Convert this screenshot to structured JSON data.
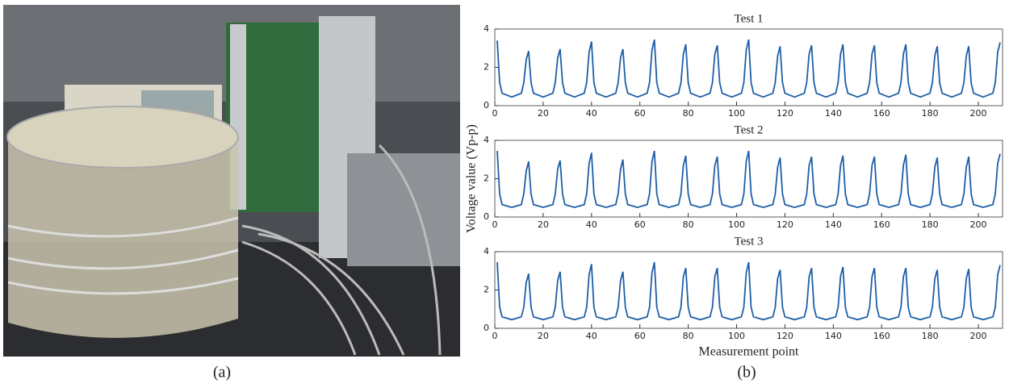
{
  "panel_labels": [
    "(a)",
    "(b)"
  ],
  "chart_data": [
    {
      "type": "line",
      "title": "Test 1",
      "color": "#1f5fa8",
      "xlim": [
        0,
        210
      ],
      "ylim": [
        0,
        4
      ],
      "xticks": [
        0,
        20,
        40,
        60,
        80,
        100,
        120,
        140,
        160,
        180,
        200
      ],
      "yticks": [
        0,
        2,
        4
      ],
      "x": [
        1,
        2,
        3,
        7,
        11,
        12,
        13,
        14,
        15,
        16,
        20,
        24,
        25,
        26,
        27,
        28,
        29,
        33,
        37,
        38,
        39,
        40,
        41,
        42,
        46,
        50,
        51,
        52,
        53,
        54,
        55,
        59,
        63,
        64,
        65,
        66,
        67,
        68,
        72,
        76,
        77,
        78,
        79,
        80,
        81,
        85,
        89,
        90,
        91,
        92,
        93,
        94,
        98,
        102,
        103,
        104,
        105,
        106,
        107,
        111,
        115,
        116,
        117,
        118,
        119,
        120,
        124,
        128,
        129,
        130,
        131,
        132,
        133,
        137,
        141,
        142,
        143,
        144,
        145,
        146,
        150,
        154,
        155,
        156,
        157,
        158,
        159,
        163,
        167,
        168,
        169,
        170,
        171,
        172,
        176,
        180,
        181,
        182,
        183,
        184,
        185,
        189,
        193,
        194,
        195,
        196,
        197,
        198,
        202,
        206,
        207,
        208,
        209
      ],
      "values": [
        3.4,
        1.2,
        0.65,
        0.45,
        0.65,
        1.2,
        2.4,
        2.85,
        1.2,
        0.65,
        0.45,
        0.65,
        1.2,
        2.5,
        2.95,
        1.2,
        0.65,
        0.45,
        0.65,
        1.2,
        2.8,
        3.35,
        1.2,
        0.65,
        0.45,
        0.65,
        1.2,
        2.5,
        2.95,
        1.2,
        0.65,
        0.45,
        0.65,
        1.2,
        2.9,
        3.45,
        1.2,
        0.65,
        0.45,
        0.65,
        1.2,
        2.7,
        3.2,
        1.2,
        0.65,
        0.45,
        0.65,
        1.2,
        2.7,
        3.15,
        1.2,
        0.65,
        0.45,
        0.65,
        1.2,
        2.9,
        3.45,
        1.2,
        0.65,
        0.45,
        0.65,
        1.2,
        2.6,
        3.1,
        1.2,
        0.65,
        0.45,
        0.65,
        1.2,
        2.7,
        3.15,
        1.2,
        0.65,
        0.45,
        0.65,
        1.2,
        2.7,
        3.2,
        1.2,
        0.65,
        0.45,
        0.65,
        1.2,
        2.7,
        3.15,
        1.2,
        0.65,
        0.45,
        0.65,
        1.2,
        2.7,
        3.2,
        1.2,
        0.65,
        0.45,
        0.65,
        1.2,
        2.6,
        3.1,
        1.2,
        0.65,
        0.45,
        0.65,
        1.2,
        2.6,
        3.1,
        1.2,
        0.65,
        0.45,
        0.65,
        1.2,
        2.8,
        3.3
      ]
    },
    {
      "type": "line",
      "title": "Test 2",
      "y_label": "Voltage value (Vp-p)",
      "color": "#1f5fa8",
      "xlim": [
        0,
        210
      ],
      "ylim": [
        0,
        4
      ],
      "xticks": [
        0,
        20,
        40,
        60,
        80,
        100,
        120,
        140,
        160,
        180,
        200
      ],
      "yticks": [
        0,
        2,
        4
      ],
      "x": [
        1,
        2,
        3,
        7,
        11,
        12,
        13,
        14,
        15,
        16,
        20,
        24,
        25,
        26,
        27,
        28,
        29,
        33,
        37,
        38,
        39,
        40,
        41,
        42,
        46,
        50,
        51,
        52,
        53,
        54,
        55,
        59,
        63,
        64,
        65,
        66,
        67,
        68,
        72,
        76,
        77,
        78,
        79,
        80,
        81,
        85,
        89,
        90,
        91,
        92,
        93,
        94,
        98,
        102,
        103,
        104,
        105,
        106,
        107,
        111,
        115,
        116,
        117,
        118,
        119,
        120,
        124,
        128,
        129,
        130,
        131,
        132,
        133,
        137,
        141,
        142,
        143,
        144,
        145,
        146,
        150,
        154,
        155,
        156,
        157,
        158,
        159,
        163,
        167,
        168,
        169,
        170,
        171,
        172,
        176,
        180,
        181,
        182,
        183,
        184,
        185,
        189,
        193,
        194,
        195,
        196,
        197,
        198,
        202,
        206,
        207,
        208,
        209
      ],
      "values": [
        3.45,
        1.2,
        0.65,
        0.5,
        0.65,
        1.2,
        2.4,
        2.9,
        1.2,
        0.65,
        0.5,
        0.65,
        1.2,
        2.5,
        2.95,
        1.2,
        0.65,
        0.5,
        0.65,
        1.2,
        2.8,
        3.35,
        1.2,
        0.65,
        0.5,
        0.65,
        1.2,
        2.5,
        3.0,
        1.2,
        0.65,
        0.5,
        0.65,
        1.2,
        2.9,
        3.45,
        1.2,
        0.65,
        0.5,
        0.65,
        1.2,
        2.7,
        3.2,
        1.2,
        0.65,
        0.5,
        0.65,
        1.2,
        2.7,
        3.15,
        1.2,
        0.65,
        0.5,
        0.65,
        1.2,
        2.9,
        3.45,
        1.2,
        0.65,
        0.5,
        0.65,
        1.2,
        2.6,
        3.1,
        1.2,
        0.65,
        0.5,
        0.65,
        1.2,
        2.7,
        3.15,
        1.2,
        0.65,
        0.5,
        0.65,
        1.2,
        2.7,
        3.2,
        1.2,
        0.65,
        0.5,
        0.65,
        1.2,
        2.7,
        3.15,
        1.2,
        0.65,
        0.5,
        0.65,
        1.2,
        2.7,
        3.25,
        1.2,
        0.65,
        0.5,
        0.65,
        1.2,
        2.6,
        3.1,
        1.2,
        0.65,
        0.5,
        0.65,
        1.2,
        2.6,
        3.15,
        1.2,
        0.65,
        0.5,
        0.65,
        1.2,
        2.8,
        3.3
      ]
    },
    {
      "type": "line",
      "title": "Test 3",
      "x_label": "Measurement point",
      "color": "#1f5fa8",
      "xlim": [
        0,
        210
      ],
      "ylim": [
        0,
        4
      ],
      "xticks": [
        0,
        20,
        40,
        60,
        80,
        100,
        120,
        140,
        160,
        180,
        200
      ],
      "yticks": [
        0,
        2,
        4
      ],
      "x": [
        1,
        2,
        3,
        7,
        11,
        12,
        13,
        14,
        15,
        16,
        20,
        24,
        25,
        26,
        27,
        28,
        29,
        33,
        37,
        38,
        39,
        40,
        41,
        42,
        46,
        50,
        51,
        52,
        53,
        54,
        55,
        59,
        63,
        64,
        65,
        66,
        67,
        68,
        72,
        76,
        77,
        78,
        79,
        80,
        81,
        85,
        89,
        90,
        91,
        92,
        93,
        94,
        98,
        102,
        103,
        104,
        105,
        106,
        107,
        111,
        115,
        116,
        117,
        118,
        119,
        120,
        124,
        128,
        129,
        130,
        131,
        132,
        133,
        137,
        141,
        142,
        143,
        144,
        145,
        146,
        150,
        154,
        155,
        156,
        157,
        158,
        159,
        163,
        167,
        168,
        169,
        170,
        171,
        172,
        176,
        180,
        181,
        182,
        183,
        184,
        185,
        189,
        193,
        194,
        195,
        196,
        197,
        198,
        202,
        206,
        207,
        208,
        209
      ],
      "values": [
        3.45,
        1.1,
        0.6,
        0.45,
        0.6,
        1.1,
        2.4,
        2.85,
        1.1,
        0.6,
        0.45,
        0.6,
        1.1,
        2.5,
        2.95,
        1.1,
        0.6,
        0.45,
        0.6,
        1.1,
        2.8,
        3.35,
        1.1,
        0.6,
        0.45,
        0.6,
        1.1,
        2.5,
        2.95,
        1.1,
        0.6,
        0.45,
        0.6,
        1.1,
        2.9,
        3.45,
        1.1,
        0.6,
        0.45,
        0.6,
        1.1,
        2.7,
        3.15,
        1.1,
        0.6,
        0.45,
        0.6,
        1.1,
        2.7,
        3.15,
        1.1,
        0.6,
        0.45,
        0.6,
        1.1,
        2.9,
        3.45,
        1.1,
        0.6,
        0.45,
        0.6,
        1.1,
        2.6,
        3.05,
        1.1,
        0.6,
        0.45,
        0.6,
        1.1,
        2.7,
        3.15,
        1.1,
        0.6,
        0.45,
        0.6,
        1.1,
        2.7,
        3.2,
        1.1,
        0.6,
        0.45,
        0.6,
        1.1,
        2.7,
        3.15,
        1.1,
        0.6,
        0.45,
        0.6,
        1.1,
        2.7,
        3.15,
        1.1,
        0.6,
        0.45,
        0.6,
        1.1,
        2.6,
        3.05,
        1.1,
        0.6,
        0.45,
        0.6,
        1.1,
        2.6,
        3.1,
        1.1,
        0.6,
        0.45,
        0.6,
        1.1,
        2.8,
        3.3
      ]
    }
  ]
}
